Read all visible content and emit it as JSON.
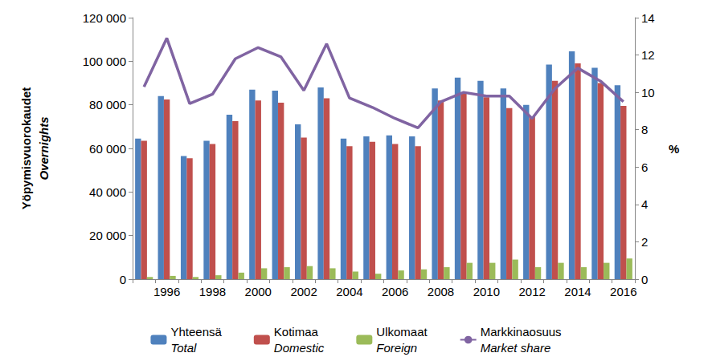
{
  "chart_data": {
    "type": "bar",
    "ylabel": "Yöpymisvuorokaudet\nOvernights",
    "y2label": "%",
    "categories": [
      null,
      "1996",
      null,
      "1998",
      null,
      "2000",
      null,
      "2002",
      null,
      "2004",
      null,
      "2006",
      null,
      "2008",
      null,
      "2010",
      null,
      "2012",
      null,
      "2014",
      null,
      "2016"
    ],
    "series": [
      {
        "name": "Yhteensä\nTotal",
        "type": "bar",
        "color": "#4F81BD",
        "values": [
          64500,
          84000,
          56500,
          63500,
          75500,
          87000,
          86500,
          71000,
          88000,
          64500,
          65500,
          66000,
          65500,
          87500,
          92500,
          91000,
          87500,
          80000,
          98500,
          104500,
          97000,
          89000
        ]
      },
      {
        "name": "Kotimaa\nDomestic",
        "type": "bar",
        "color": "#C0504D",
        "values": [
          63500,
          82500,
          55500,
          62000,
          72500,
          82000,
          81000,
          65000,
          83000,
          61000,
          63000,
          62000,
          61000,
          82000,
          85000,
          83500,
          78500,
          74500,
          91000,
          99000,
          90000,
          79500
        ]
      },
      {
        "name": "Ulkomaat\nForeign",
        "type": "bar",
        "color": "#9BBB59",
        "values": [
          1000,
          1500,
          1000,
          1800,
          3000,
          5000,
          5500,
          6000,
          5000,
          3500,
          2500,
          4000,
          4500,
          5500,
          7500,
          7500,
          9000,
          5500,
          7500,
          5500,
          7500,
          9500
        ]
      },
      {
        "name": "Markkinaosuus\nMarket share",
        "type": "line",
        "axis": "y2",
        "color": "#8064A2",
        "values": [
          10.3,
          12.9,
          9.4,
          9.9,
          11.8,
          12.4,
          11.9,
          10.1,
          12.6,
          9.7,
          9.2,
          8.6,
          8.1,
          9.5,
          10.0,
          9.8,
          9.8,
          8.6,
          10.2,
          11.3,
          10.6,
          9.5
        ]
      }
    ],
    "ylim": [
      0,
      120000
    ],
    "yticks": [
      0,
      {
        "value": 20000,
        "label": "20 000"
      },
      {
        "value": 40000,
        "label": "40 000"
      },
      {
        "value": 60000,
        "label": "60 000"
      },
      {
        "value": 80000,
        "label": "80 000"
      },
      {
        "value": 100000,
        "label": "100 000"
      },
      {
        "value": 120000,
        "label": "120 000"
      }
    ],
    "y2lim": [
      0,
      14
    ],
    "y2ticks": [
      0,
      2,
      4,
      6,
      8,
      10,
      12,
      14
    ],
    "grid": false,
    "legend": "bottom"
  }
}
